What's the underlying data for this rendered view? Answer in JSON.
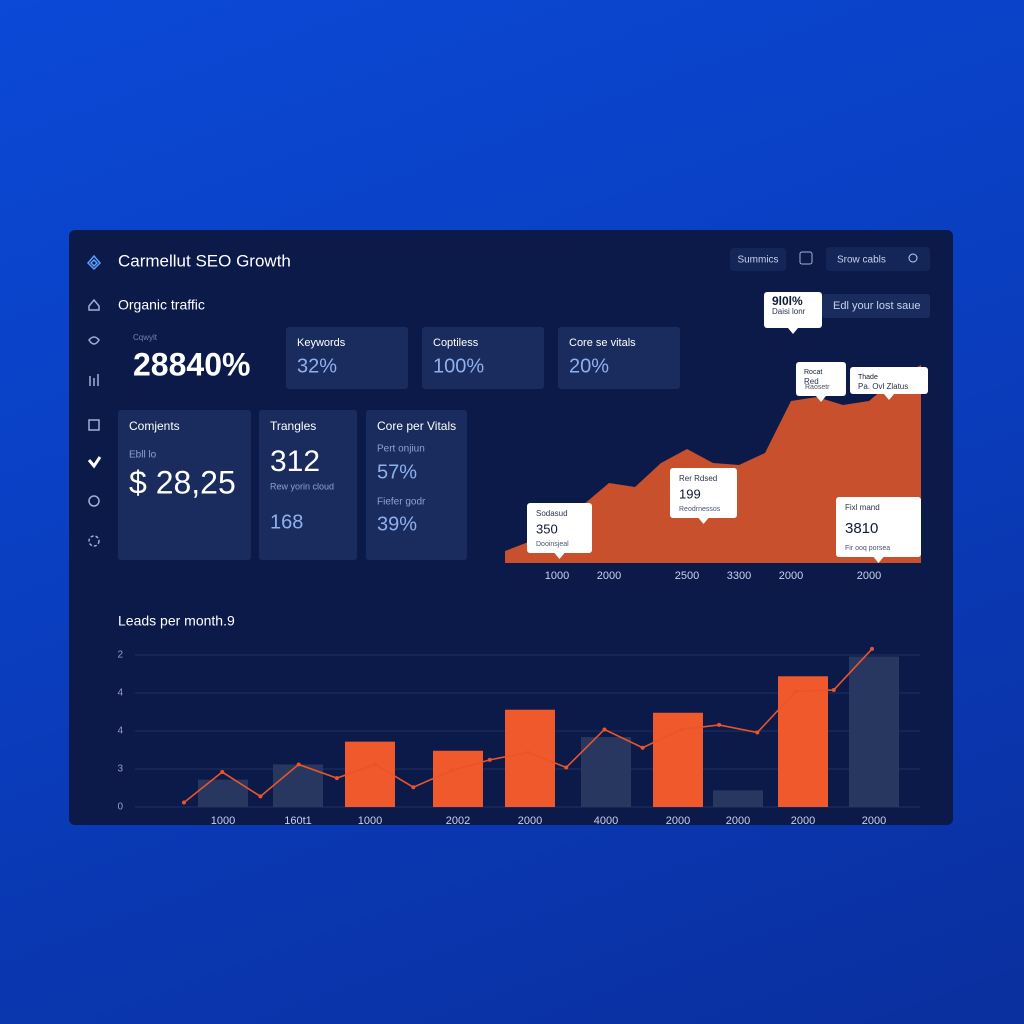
{
  "header": {
    "title": "Carmellut SEO Growth",
    "buttons": [
      "Summics",
      "Srow cabls"
    ]
  },
  "section_title": "Organic traffic",
  "hero": {
    "label": "Cqwylt",
    "value": "28840%"
  },
  "kpi_cards": [
    {
      "label": "Keywords",
      "value": "32%"
    },
    {
      "label": "Coptiless",
      "value": "100%"
    },
    {
      "label": "Core se vitals",
      "value": "20%"
    }
  ],
  "detail_cards": [
    {
      "title": "Comjents",
      "lines": [
        "Ebll lo",
        "$ 28,25"
      ]
    },
    {
      "title": "Trangles",
      "lines": [
        "312",
        "Rew yorin cloud",
        "168"
      ]
    },
    {
      "title": "Core per Vitals",
      "lines": [
        "Pert onjiun",
        "57%",
        "Fiefer godr",
        "39%"
      ]
    }
  ],
  "save_button": "Edl your lost saue",
  "chart_data": [
    {
      "type": "area",
      "categories": [
        null,
        null,
        "1000",
        null,
        "2000",
        null,
        null,
        "2500",
        null,
        "3300",
        null,
        "2000",
        null,
        null,
        "2000",
        null,
        null
      ],
      "values": [
        6,
        11,
        16,
        29,
        40,
        38,
        50,
        57,
        50,
        49,
        55,
        81,
        83,
        79,
        81,
        92,
        99
      ],
      "color": "#c8502d",
      "ylim": [
        0,
        100
      ],
      "callouts": [
        {
          "title": "9l0l%",
          "text": "Daisi lonr"
        },
        {
          "title": "350",
          "text": "Sodasud",
          "sub": "Dooinsjeal"
        },
        {
          "title": "199",
          "text": "Rer Rdsed",
          "sub": "Reodrnessos"
        },
        {
          "title": "Rocat",
          "text": "Red",
          "sub": "Raosetr"
        },
        {
          "title": "Thade",
          "text": "Pa. Ovl Zlatus"
        },
        {
          "title": "3810",
          "text": "Fixl mand",
          "sub": "Fir ooq porsea"
        }
      ]
    },
    {
      "type": "bar",
      "title": "Leads per month.9",
      "categories": [
        "1000",
        "160t1",
        "1000",
        "2002",
        "2000",
        "4000",
        "2000",
        "2000",
        "2000",
        "2000"
      ],
      "values": [
        18,
        28,
        43,
        37,
        64,
        46,
        62,
        11,
        86,
        99
      ],
      "bar_colors": [
        "#27375f",
        "#27375f",
        "#f0592b",
        "#f0592b",
        "#f0592b",
        "#27375f",
        "#f0592b",
        "#27375f",
        "#f0592b",
        "#27375f"
      ],
      "line_values": [
        3,
        23,
        7,
        28,
        19,
        28,
        13,
        24,
        31,
        36,
        26,
        51,
        39,
        51,
        54,
        49,
        76,
        77,
        104
      ],
      "line_color": "#e8552a",
      "y_labels": [
        "2",
        "4",
        "4",
        "3",
        "0"
      ],
      "ylim": [
        0,
        100
      ],
      "grid": true
    }
  ]
}
